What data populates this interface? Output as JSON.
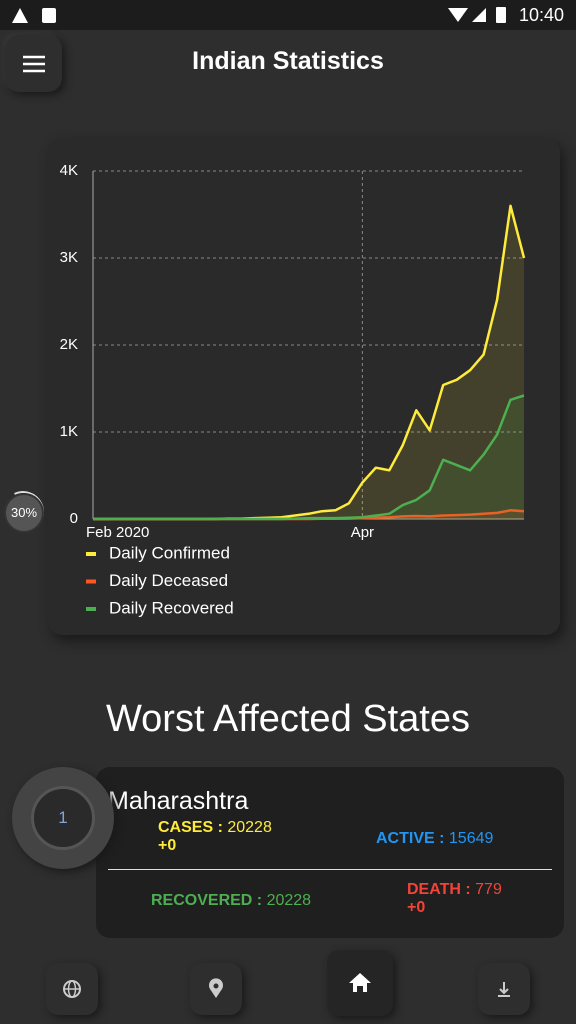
{
  "status_bar": {
    "time": "10:40"
  },
  "header": {
    "title": "Indian Statistics"
  },
  "progress_badge": {
    "label": "30%"
  },
  "chart_data": {
    "type": "line",
    "categories": [
      "Feb 2020",
      null,
      null,
      null,
      null,
      null,
      null,
      null,
      null,
      null,
      null,
      null,
      null,
      null,
      null,
      null,
      null,
      null,
      null,
      null,
      "Apr",
      null,
      null,
      null,
      null,
      null,
      null,
      null,
      null,
      null,
      null,
      null,
      null
    ],
    "series": [
      {
        "name": "Daily Confirmed",
        "color": "#ffeb3b",
        "values": [
          0,
          0,
          0,
          0,
          0,
          0,
          0,
          0,
          0,
          0,
          5,
          5,
          10,
          15,
          20,
          40,
          60,
          90,
          100,
          180,
          420,
          590,
          560,
          850,
          1250,
          1020,
          1540,
          1600,
          1710,
          1890,
          2520,
          3600,
          3000
        ]
      },
      {
        "name": "Daily Deceased",
        "color": "#ff5722",
        "values": [
          0,
          0,
          0,
          0,
          0,
          0,
          0,
          0,
          0,
          0,
          0,
          0,
          0,
          0,
          0,
          0,
          0,
          2,
          3,
          5,
          10,
          15,
          20,
          30,
          35,
          30,
          40,
          45,
          50,
          60,
          70,
          100,
          90
        ]
      },
      {
        "name": "Daily Recovered",
        "color": "#4caf50",
        "values": [
          0,
          0,
          0,
          0,
          0,
          0,
          0,
          0,
          0,
          0,
          0,
          0,
          0,
          0,
          0,
          5,
          10,
          10,
          10,
          15,
          20,
          40,
          60,
          160,
          220,
          330,
          680,
          620,
          560,
          740,
          970,
          1370,
          1420
        ]
      }
    ],
    "ylim": [
      0,
      4000
    ],
    "yticks": [
      0,
      {
        "value": 1000,
        "label": "1K"
      },
      {
        "value": 2000,
        "label": "2K"
      },
      {
        "value": 3000,
        "label": "3K"
      },
      {
        "value": 4000,
        "label": "4K"
      }
    ],
    "grid": true
  },
  "states": {
    "title": "Worst Affected States",
    "items": [
      {
        "rank": "1",
        "name": "Maharashtra",
        "cases_label": "CASES :",
        "cases": "20228",
        "cases_delta": "+0",
        "active_label": "ACTIVE :",
        "active": "15649",
        "recovered_label": "RECOVERED :",
        "recovered": "20228",
        "death_label": "DEATH :",
        "death": "779",
        "death_delta": "+0"
      }
    ]
  }
}
